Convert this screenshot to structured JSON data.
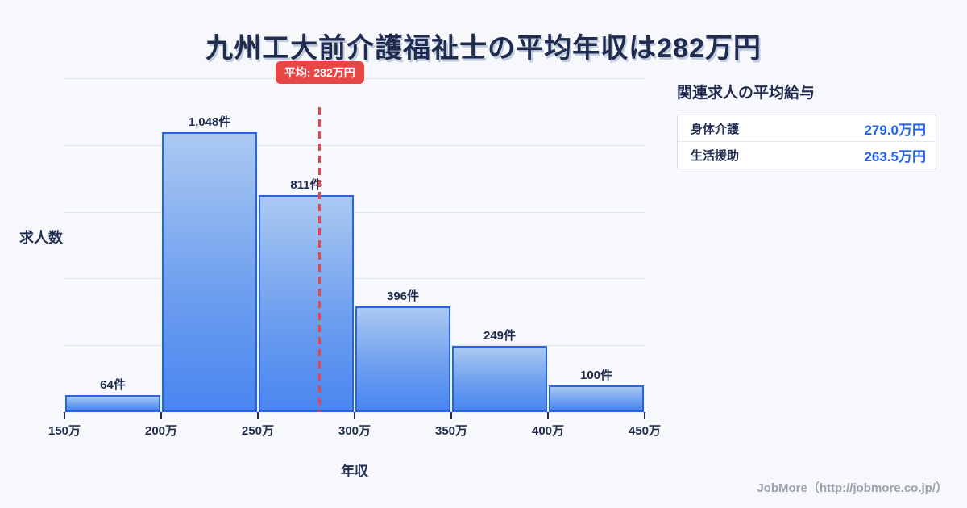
{
  "title": "九州工大前介護福祉士の平均年収は282万円",
  "chart_data": {
    "type": "bar",
    "title": "九州工大前介護福祉士の平均年収は282万円",
    "xlabel": "年収",
    "ylabel": "求人数",
    "categories": [
      "150万-200万",
      "200万-250万",
      "250万-300万",
      "300万-350万",
      "350万-400万",
      "400万-450万"
    ],
    "bin_edge_labels": [
      "150万",
      "200万",
      "250万",
      "300万",
      "350万",
      "400万",
      "450万"
    ],
    "values": [
      64,
      1048,
      811,
      396,
      249,
      100
    ],
    "bar_labels": [
      "64件",
      "1,048件",
      "811件",
      "396件",
      "249件",
      "100件"
    ],
    "x_range": [
      150,
      450
    ],
    "ylim": [
      0,
      1250
    ],
    "grid": true,
    "grid_interval": 250,
    "legend": "none",
    "average": {
      "value": 282,
      "label": "平均: 282万円",
      "line_color": "#e84545"
    },
    "bar_fill_top": "#abc9f1",
    "bar_fill_bottom": "#4a86f0",
    "bar_border_color": "#2563e8"
  },
  "side_panel": {
    "title": "関連求人の平均給与",
    "rows": [
      {
        "label": "身体介護",
        "value": "279.0万円"
      },
      {
        "label": "生活援助",
        "value": "263.5万円"
      }
    ],
    "value_color": "#2563eb"
  },
  "footer": {
    "credit": "JobMore（http://jobmore.co.jp/）"
  },
  "colors": {
    "background": "#f7f8fb",
    "heading_navy": "#1f2c50",
    "grid": "#dfe3ee",
    "accent_red": "#e84545",
    "value_blue": "#2563eb",
    "footer_gray": "#9aa1ac"
  }
}
